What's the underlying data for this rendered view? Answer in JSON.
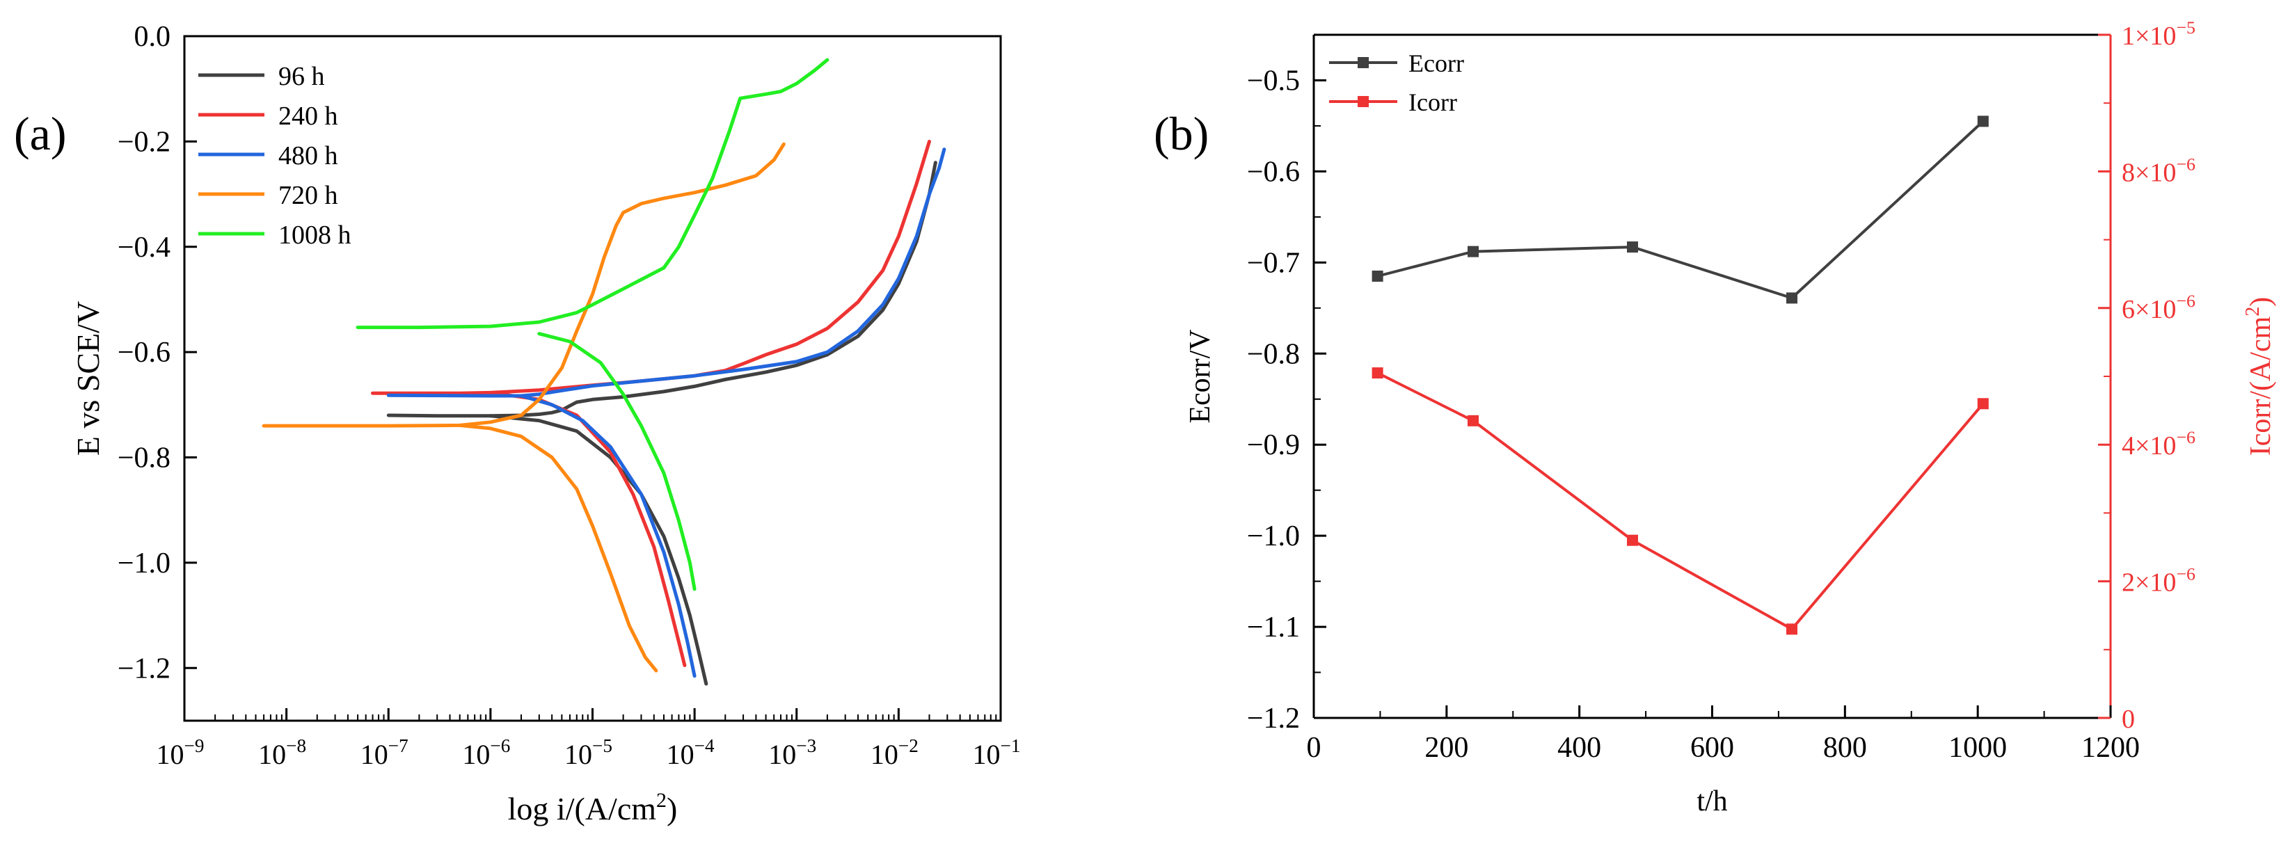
{
  "figure": {
    "panel_a_label": "(a)",
    "panel_b_label": "(b)"
  },
  "chart_data": [
    {
      "type": "line",
      "x_scale": "log",
      "xlabel": "log i/(A/cm²)",
      "ylabel": "E vs SCE/V",
      "xlim": [
        1e-09,
        0.1
      ],
      "ylim": [
        -1.3,
        0.0
      ],
      "x_ticks": [
        1e-09,
        1e-08,
        1e-07,
        1e-06,
        1e-05,
        0.0001,
        0.001,
        0.01,
        0.1
      ],
      "x_tick_labels": [
        {
          "base": "10",
          "exp": "−9"
        },
        {
          "base": "10",
          "exp": "−8"
        },
        {
          "base": "10",
          "exp": "−7"
        },
        {
          "base": "10",
          "exp": "−6"
        },
        {
          "base": "10",
          "exp": "−5"
        },
        {
          "base": "10",
          "exp": "−4"
        },
        {
          "base": "10",
          "exp": "−3"
        },
        {
          "base": "10",
          "exp": "−2"
        },
        {
          "base": "10",
          "exp": "−1"
        }
      ],
      "y_ticks": [
        0.0,
        -0.2,
        -0.4,
        -0.6,
        -0.8,
        -1.0,
        -1.2
      ],
      "y_tick_labels": [
        "0.0",
        "−0.2",
        "−0.4",
        "−0.6",
        "−0.8",
        "−1.0",
        "−1.2"
      ],
      "legend_position": "top-left",
      "series": [
        {
          "name": "96 h",
          "color": "#404040",
          "points": [
            [
              1e-07,
              -0.72
            ],
            [
              3e-07,
              -0.721
            ],
            [
              1e-06,
              -0.721
            ],
            [
              2e-06,
              -0.72
            ],
            [
              3e-06,
              -0.718
            ],
            [
              4e-06,
              -0.715
            ],
            [
              5e-06,
              -0.71
            ],
            [
              7e-06,
              -0.695
            ],
            [
              1e-05,
              -0.69
            ],
            [
              2e-05,
              -0.685
            ],
            [
              5e-05,
              -0.675
            ],
            [
              0.0001,
              -0.665
            ],
            [
              0.0002,
              -0.652
            ],
            [
              0.0005,
              -0.638
            ],
            [
              0.001,
              -0.625
            ],
            [
              0.002,
              -0.605
            ],
            [
              0.004,
              -0.57
            ],
            [
              0.007,
              -0.52
            ],
            [
              0.01,
              -0.47
            ],
            [
              0.015,
              -0.39
            ],
            [
              0.02,
              -0.3
            ],
            [
              0.023,
              -0.24
            ]
          ],
          "cathodic": [
            [
              1e-06,
              -0.721
            ],
            [
              3e-06,
              -0.73
            ],
            [
              7e-06,
              -0.75
            ],
            [
              1.5e-05,
              -0.8
            ],
            [
              3e-05,
              -0.87
            ],
            [
              5e-05,
              -0.95
            ],
            [
              7e-05,
              -1.03
            ],
            [
              9e-05,
              -1.1
            ],
            [
              0.00011,
              -1.17
            ],
            [
              0.00013,
              -1.23
            ]
          ]
        },
        {
          "name": "240 h",
          "color": "#ee3333",
          "points": [
            [
              7e-08,
              -0.678
            ],
            [
              1e-07,
              -0.678
            ],
            [
              5e-07,
              -0.678
            ],
            [
              1e-06,
              -0.677
            ],
            [
              3e-06,
              -0.672
            ],
            [
              1e-05,
              -0.663
            ],
            [
              3e-05,
              -0.655
            ],
            [
              0.0001,
              -0.645
            ],
            [
              0.0002,
              -0.635
            ],
            [
              0.0003,
              -0.622
            ],
            [
              0.0005,
              -0.605
            ],
            [
              0.001,
              -0.585
            ],
            [
              0.002,
              -0.555
            ],
            [
              0.004,
              -0.505
            ],
            [
              0.007,
              -0.445
            ],
            [
              0.01,
              -0.38
            ],
            [
              0.015,
              -0.28
            ],
            [
              0.02,
              -0.2
            ]
          ],
          "cathodic": [
            [
              1e-06,
              -0.677
            ],
            [
              3e-06,
              -0.69
            ],
            [
              7e-06,
              -0.72
            ],
            [
              1.5e-05,
              -0.79
            ],
            [
              2.5e-05,
              -0.87
            ],
            [
              4e-05,
              -0.97
            ],
            [
              5.5e-05,
              -1.07
            ],
            [
              7e-05,
              -1.15
            ],
            [
              8e-05,
              -1.195
            ]
          ]
        },
        {
          "name": "480 h",
          "color": "#2266dd",
          "points": [
            [
              1e-07,
              -0.682
            ],
            [
              1e-06,
              -0.683
            ],
            [
              2e-06,
              -0.683
            ],
            [
              3e-06,
              -0.68
            ],
            [
              5e-06,
              -0.673
            ],
            [
              1e-05,
              -0.664
            ],
            [
              3e-05,
              -0.655
            ],
            [
              0.0001,
              -0.645
            ],
            [
              0.0003,
              -0.633
            ],
            [
              0.001,
              -0.618
            ],
            [
              0.002,
              -0.6
            ],
            [
              0.004,
              -0.56
            ],
            [
              0.007,
              -0.51
            ],
            [
              0.01,
              -0.46
            ],
            [
              0.015,
              -0.38
            ],
            [
              0.02,
              -0.3
            ],
            [
              0.025,
              -0.25
            ],
            [
              0.028,
              -0.215
            ]
          ],
          "cathodic": [
            [
              2e-06,
              -0.683
            ],
            [
              4e-06,
              -0.7
            ],
            [
              8e-06,
              -0.73
            ],
            [
              1.5e-05,
              -0.78
            ],
            [
              3e-05,
              -0.87
            ],
            [
              5e-05,
              -0.98
            ],
            [
              7e-05,
              -1.08
            ],
            [
              8.5e-05,
              -1.15
            ],
            [
              0.0001,
              -1.215
            ]
          ]
        },
        {
          "name": "720 h",
          "color": "#ff8811",
          "points": [
            [
              6e-09,
              -0.74
            ],
            [
              3e-08,
              -0.74
            ],
            [
              1e-07,
              -0.74
            ],
            [
              5e-07,
              -0.739
            ],
            [
              1e-06,
              -0.733
            ],
            [
              2e-06,
              -0.72
            ],
            [
              3e-06,
              -0.69
            ],
            [
              5e-06,
              -0.63
            ],
            [
              7e-06,
              -0.56
            ],
            [
              1e-05,
              -0.49
            ],
            [
              1.3e-05,
              -0.42
            ],
            [
              1.7e-05,
              -0.36
            ],
            [
              2e-05,
              -0.335
            ],
            [
              3e-05,
              -0.318
            ],
            [
              5e-05,
              -0.308
            ],
            [
              0.0001,
              -0.297
            ],
            [
              0.0002,
              -0.283
            ],
            [
              0.0004,
              -0.265
            ],
            [
              0.0006,
              -0.235
            ],
            [
              0.00075,
              -0.205
            ]
          ],
          "cathodic": [
            [
              5e-07,
              -0.739
            ],
            [
              1e-06,
              -0.745
            ],
            [
              2e-06,
              -0.76
            ],
            [
              4e-06,
              -0.8
            ],
            [
              7e-06,
              -0.86
            ],
            [
              1e-05,
              -0.93
            ],
            [
              1.5e-05,
              -1.02
            ],
            [
              2.3e-05,
              -1.12
            ],
            [
              3.3e-05,
              -1.18
            ],
            [
              4.2e-05,
              -1.205
            ]
          ]
        },
        {
          "name": "1008 h",
          "color": "#22ee22",
          "points": [
            [
              5e-08,
              -0.553
            ],
            [
              2e-07,
              -0.553
            ],
            [
              1e-06,
              -0.551
            ],
            [
              3e-06,
              -0.543
            ],
            [
              7e-06,
              -0.525
            ],
            [
              1e-05,
              -0.51
            ],
            [
              2e-05,
              -0.48
            ],
            [
              5e-05,
              -0.44
            ],
            [
              7e-05,
              -0.4
            ],
            [
              0.0001,
              -0.34
            ],
            [
              0.00015,
              -0.27
            ],
            [
              0.00022,
              -0.18
            ],
            [
              0.00028,
              -0.118
            ],
            [
              0.0005,
              -0.11
            ],
            [
              0.0007,
              -0.105
            ],
            [
              0.001,
              -0.09
            ],
            [
              0.0015,
              -0.065
            ],
            [
              0.002,
              -0.045
            ]
          ],
          "cathodic": [
            [
              3e-06,
              -0.565
            ],
            [
              6e-06,
              -0.58
            ],
            [
              1.2e-05,
              -0.62
            ],
            [
              2e-05,
              -0.68
            ],
            [
              3e-05,
              -0.74
            ],
            [
              5e-05,
              -0.83
            ],
            [
              7e-05,
              -0.92
            ],
            [
              9e-05,
              -1.0
            ],
            [
              0.0001,
              -1.05
            ]
          ]
        }
      ]
    },
    {
      "type": "line",
      "xlabel": "t/h",
      "ylabel": "Ecorr/V",
      "y2label": "Icorr/(A/cm²)",
      "xlim": [
        0,
        1200
      ],
      "ylim": [
        -1.2,
        -0.45
      ],
      "y2lim": [
        0,
        1e-05
      ],
      "x_ticks": [
        0,
        200,
        400,
        600,
        800,
        1000,
        1200
      ],
      "x_tick_labels": [
        "0",
        "200",
        "400",
        "600",
        "800",
        "1000",
        "1200"
      ],
      "y_ticks": [
        -0.5,
        -0.6,
        -0.7,
        -0.8,
        -0.9,
        -1.0,
        -1.1,
        -1.2
      ],
      "y_tick_labels": [
        "−0.5",
        "−0.6",
        "−0.7",
        "−0.8",
        "−0.9",
        "−1.0",
        "−1.1",
        "−1.2"
      ],
      "y2_ticks": [
        0,
        2e-06,
        4e-06,
        6e-06,
        8e-06,
        1e-05
      ],
      "y2_tick_labels": [
        {
          "base": "0",
          "exp": ""
        },
        {
          "base": "2×10",
          "exp": "−6"
        },
        {
          "base": "4×10",
          "exp": "−6"
        },
        {
          "base": "6×10",
          "exp": "−6"
        },
        {
          "base": "8×10",
          "exp": "−6"
        },
        {
          "base": "1×10",
          "exp": "−5"
        }
      ],
      "x": [
        96,
        240,
        480,
        720,
        1008
      ],
      "legend_position": "top-left",
      "series": [
        {
          "name": "Ecorr",
          "axis": "left",
          "color": "#404040",
          "values": [
            -0.715,
            -0.688,
            -0.683,
            -0.739,
            -0.545
          ]
        },
        {
          "name": "Icorr",
          "axis": "right",
          "color": "#ee3333",
          "values": [
            5.05e-06,
            4.35e-06,
            2.6e-06,
            1.3e-06,
            4.6e-06
          ]
        }
      ]
    }
  ]
}
